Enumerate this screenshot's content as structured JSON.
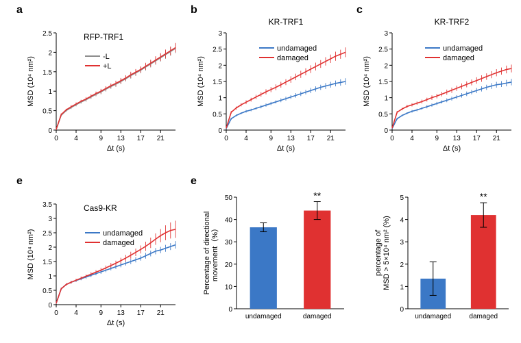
{
  "global": {
    "font_family": "Arial, Helvetica, sans-serif",
    "axis_color": "#000000",
    "tick_fontsize": 11,
    "axis_label_fontsize": 12,
    "panel_label_fontsize": 16,
    "title_fontsize": 12,
    "legend_fontsize": 11,
    "background": "#ffffff",
    "grid_color": "none"
  },
  "panel_a": {
    "letter": "a",
    "title": "RFP-TRF1",
    "type": "line_with_errorbars",
    "x": {
      "label": "Δt (s)",
      "lim": [
        0,
        24
      ],
      "ticks": [
        0,
        4,
        9,
        13,
        17,
        21
      ]
    },
    "y": {
      "label": "MSD (10⁴ nm²)",
      "lim": [
        0,
        2.5
      ],
      "ticks": [
        0,
        0.5,
        1,
        1.5,
        2,
        2.5
      ]
    },
    "sampled_t": [
      0,
      1,
      2,
      3,
      4,
      5,
      6,
      7,
      8,
      9,
      10,
      11,
      12,
      13,
      14,
      15,
      16,
      17,
      18,
      19,
      20,
      21,
      22,
      23,
      24
    ],
    "series": [
      {
        "name": "-L",
        "color": "#8c8c8c",
        "values": [
          0.02,
          0.38,
          0.5,
          0.58,
          0.65,
          0.72,
          0.78,
          0.85,
          0.92,
          0.98,
          1.05,
          1.12,
          1.18,
          1.25,
          1.32,
          1.4,
          1.47,
          1.54,
          1.62,
          1.7,
          1.78,
          1.86,
          1.94,
          2.02,
          2.1
        ],
        "err": [
          0.02,
          0.03,
          0.03,
          0.04,
          0.04,
          0.04,
          0.05,
          0.05,
          0.05,
          0.06,
          0.06,
          0.06,
          0.07,
          0.07,
          0.07,
          0.08,
          0.08,
          0.08,
          0.09,
          0.09,
          0.1,
          0.1,
          0.11,
          0.11,
          0.12
        ]
      },
      {
        "name": "+L",
        "color": "#e03131",
        "values": [
          0.02,
          0.4,
          0.52,
          0.6,
          0.67,
          0.74,
          0.8,
          0.87,
          0.94,
          1.0,
          1.07,
          1.14,
          1.2,
          1.27,
          1.34,
          1.42,
          1.49,
          1.56,
          1.64,
          1.72,
          1.8,
          1.88,
          1.96,
          2.04,
          2.12
        ],
        "err": [
          0.02,
          0.03,
          0.03,
          0.04,
          0.04,
          0.04,
          0.05,
          0.05,
          0.05,
          0.06,
          0.06,
          0.06,
          0.07,
          0.07,
          0.07,
          0.08,
          0.08,
          0.08,
          0.09,
          0.09,
          0.1,
          0.1,
          0.11,
          0.11,
          0.12
        ]
      }
    ]
  },
  "panel_b": {
    "letter": "b",
    "title": "KR-TRF1",
    "type": "line_with_errorbars",
    "x": {
      "label": "Δt (s)",
      "lim": [
        0,
        24
      ],
      "ticks": [
        0,
        4,
        9,
        13,
        17,
        21
      ]
    },
    "y": {
      "label": "MSD (10⁴ nm²)",
      "lim": [
        0,
        3.0
      ],
      "ticks": [
        0,
        0.5,
        1,
        1.5,
        2,
        2.5,
        3
      ]
    },
    "sampled_t": [
      0,
      1,
      2,
      3,
      4,
      5,
      6,
      7,
      8,
      9,
      10,
      11,
      12,
      13,
      14,
      15,
      16,
      17,
      18,
      19,
      20,
      21,
      22,
      23,
      24
    ],
    "series": [
      {
        "name": "undamaged",
        "color": "#3b78c6",
        "values": [
          0.05,
          0.35,
          0.45,
          0.52,
          0.58,
          0.62,
          0.67,
          0.72,
          0.77,
          0.82,
          0.87,
          0.92,
          0.97,
          1.02,
          1.07,
          1.12,
          1.17,
          1.22,
          1.27,
          1.32,
          1.36,
          1.4,
          1.44,
          1.47,
          1.5
        ],
        "err": [
          0.02,
          0.03,
          0.03,
          0.03,
          0.04,
          0.04,
          0.04,
          0.05,
          0.05,
          0.05,
          0.05,
          0.06,
          0.06,
          0.06,
          0.07,
          0.07,
          0.07,
          0.08,
          0.08,
          0.08,
          0.09,
          0.09,
          0.09,
          0.1,
          0.1
        ]
      },
      {
        "name": "damaged",
        "color": "#e03131",
        "values": [
          0.06,
          0.55,
          0.68,
          0.78,
          0.86,
          0.94,
          1.02,
          1.1,
          1.18,
          1.25,
          1.32,
          1.4,
          1.48,
          1.56,
          1.64,
          1.72,
          1.8,
          1.88,
          1.96,
          2.04,
          2.12,
          2.2,
          2.28,
          2.34,
          2.4
        ],
        "err": [
          0.02,
          0.04,
          0.05,
          0.05,
          0.06,
          0.06,
          0.07,
          0.07,
          0.08,
          0.08,
          0.09,
          0.09,
          0.09,
          0.1,
          0.1,
          0.11,
          0.11,
          0.12,
          0.12,
          0.12,
          0.13,
          0.13,
          0.14,
          0.14,
          0.15
        ]
      }
    ]
  },
  "panel_c": {
    "letter": "c",
    "title": "KR-TRF2",
    "type": "line_with_errorbars",
    "x": {
      "label": "Δt (s)",
      "lim": [
        0,
        24
      ],
      "ticks": [
        0,
        4,
        9,
        13,
        17,
        21
      ]
    },
    "y": {
      "label": "MSD (10⁴ nm²)",
      "lim": [
        0,
        3.0
      ],
      "ticks": [
        0,
        0.5,
        1,
        1.5,
        2,
        2.5,
        3
      ]
    },
    "sampled_t": [
      0,
      1,
      2,
      3,
      4,
      5,
      6,
      7,
      8,
      9,
      10,
      11,
      12,
      13,
      14,
      15,
      16,
      17,
      18,
      19,
      20,
      21,
      22,
      23,
      24
    ],
    "series": [
      {
        "name": "undamaged",
        "color": "#3b78c6",
        "values": [
          0.05,
          0.35,
          0.45,
          0.52,
          0.58,
          0.62,
          0.67,
          0.72,
          0.77,
          0.82,
          0.87,
          0.92,
          0.97,
          1.02,
          1.07,
          1.12,
          1.17,
          1.22,
          1.27,
          1.32,
          1.36,
          1.4,
          1.42,
          1.45,
          1.48
        ],
        "err": [
          0.02,
          0.03,
          0.03,
          0.03,
          0.04,
          0.04,
          0.04,
          0.05,
          0.05,
          0.05,
          0.05,
          0.06,
          0.06,
          0.06,
          0.07,
          0.07,
          0.07,
          0.08,
          0.08,
          0.08,
          0.09,
          0.09,
          0.09,
          0.1,
          0.1
        ]
      },
      {
        "name": "damaged",
        "color": "#e03131",
        "values": [
          0.06,
          0.55,
          0.65,
          0.73,
          0.78,
          0.83,
          0.88,
          0.94,
          1.0,
          1.05,
          1.11,
          1.17,
          1.23,
          1.29,
          1.35,
          1.41,
          1.47,
          1.53,
          1.59,
          1.65,
          1.71,
          1.77,
          1.82,
          1.87,
          1.9
        ],
        "err": [
          0.02,
          0.04,
          0.04,
          0.05,
          0.05,
          0.05,
          0.06,
          0.06,
          0.07,
          0.07,
          0.07,
          0.08,
          0.08,
          0.08,
          0.09,
          0.09,
          0.09,
          0.1,
          0.1,
          0.1,
          0.11,
          0.11,
          0.11,
          0.12,
          0.12
        ]
      }
    ]
  },
  "panel_e1": {
    "letter": "e",
    "title": "Cas9-KR",
    "type": "line_with_errorbars",
    "x": {
      "label": "Δt (s)",
      "lim": [
        0,
        24
      ],
      "ticks": [
        0,
        4,
        9,
        13,
        17,
        21
      ]
    },
    "y": {
      "label": "MSD (10⁴ nm²)",
      "lim": [
        0,
        3.5
      ],
      "ticks": [
        0,
        0.5,
        1,
        1.5,
        2,
        2.5,
        3,
        3.5
      ]
    },
    "sampled_t": [
      0,
      1,
      2,
      3,
      4,
      5,
      6,
      7,
      8,
      9,
      10,
      11,
      12,
      13,
      14,
      15,
      16,
      17,
      18,
      19,
      20,
      21,
      22,
      23,
      24
    ],
    "series": [
      {
        "name": "undamaged",
        "color": "#3b78c6",
        "values": [
          0.05,
          0.55,
          0.7,
          0.78,
          0.84,
          0.9,
          0.96,
          1.02,
          1.08,
          1.14,
          1.2,
          1.26,
          1.32,
          1.38,
          1.44,
          1.5,
          1.56,
          1.62,
          1.7,
          1.78,
          1.86,
          1.9,
          1.96,
          2.02,
          2.08
        ],
        "err": [
          0.02,
          0.04,
          0.04,
          0.05,
          0.05,
          0.05,
          0.06,
          0.06,
          0.06,
          0.07,
          0.07,
          0.07,
          0.08,
          0.08,
          0.08,
          0.09,
          0.09,
          0.09,
          0.1,
          0.1,
          0.11,
          0.11,
          0.12,
          0.12,
          0.13
        ]
      },
      {
        "name": "damaged",
        "color": "#e03131",
        "values": [
          0.05,
          0.55,
          0.7,
          0.78,
          0.85,
          0.92,
          0.99,
          1.06,
          1.13,
          1.2,
          1.28,
          1.36,
          1.44,
          1.53,
          1.62,
          1.72,
          1.82,
          1.92,
          2.03,
          2.15,
          2.28,
          2.4,
          2.5,
          2.58,
          2.62
        ],
        "err": [
          0.02,
          0.04,
          0.04,
          0.05,
          0.05,
          0.06,
          0.06,
          0.07,
          0.07,
          0.08,
          0.08,
          0.09,
          0.09,
          0.1,
          0.11,
          0.12,
          0.13,
          0.14,
          0.16,
          0.18,
          0.2,
          0.23,
          0.26,
          0.28,
          0.3
        ]
      }
    ]
  },
  "panel_e2": {
    "letter": "e",
    "type": "bar_with_errorbars",
    "x": {
      "categories": [
        "undamaged",
        "damaged"
      ]
    },
    "y": {
      "label": "Percentage of directional\nmovement（%）",
      "lim": [
        0,
        50
      ],
      "ticks": [
        0,
        10,
        20,
        30,
        40,
        50
      ]
    },
    "bars": [
      {
        "label": "undamaged",
        "value": 36.5,
        "err": 2.0,
        "color": "#3b78c6"
      },
      {
        "label": "damaged",
        "value": 44.0,
        "err": 4.0,
        "color": "#e03131",
        "sig": "**"
      }
    ],
    "bar_width": 0.5
  },
  "panel_e3": {
    "type": "bar_with_errorbars",
    "x": {
      "categories": [
        "undamaged",
        "damaged"
      ]
    },
    "y": {
      "label": "percentage of\nMSD > 5×10⁴ nm² (%)",
      "lim": [
        0,
        5
      ],
      "ticks": [
        0,
        1,
        2,
        3,
        4,
        5
      ]
    },
    "bars": [
      {
        "label": "undamaged",
        "value": 1.35,
        "err": 0.75,
        "color": "#3b78c6"
      },
      {
        "label": "damaged",
        "value": 4.2,
        "err": 0.55,
        "color": "#e03131",
        "sig": "**"
      }
    ],
    "bar_width": 0.5
  }
}
